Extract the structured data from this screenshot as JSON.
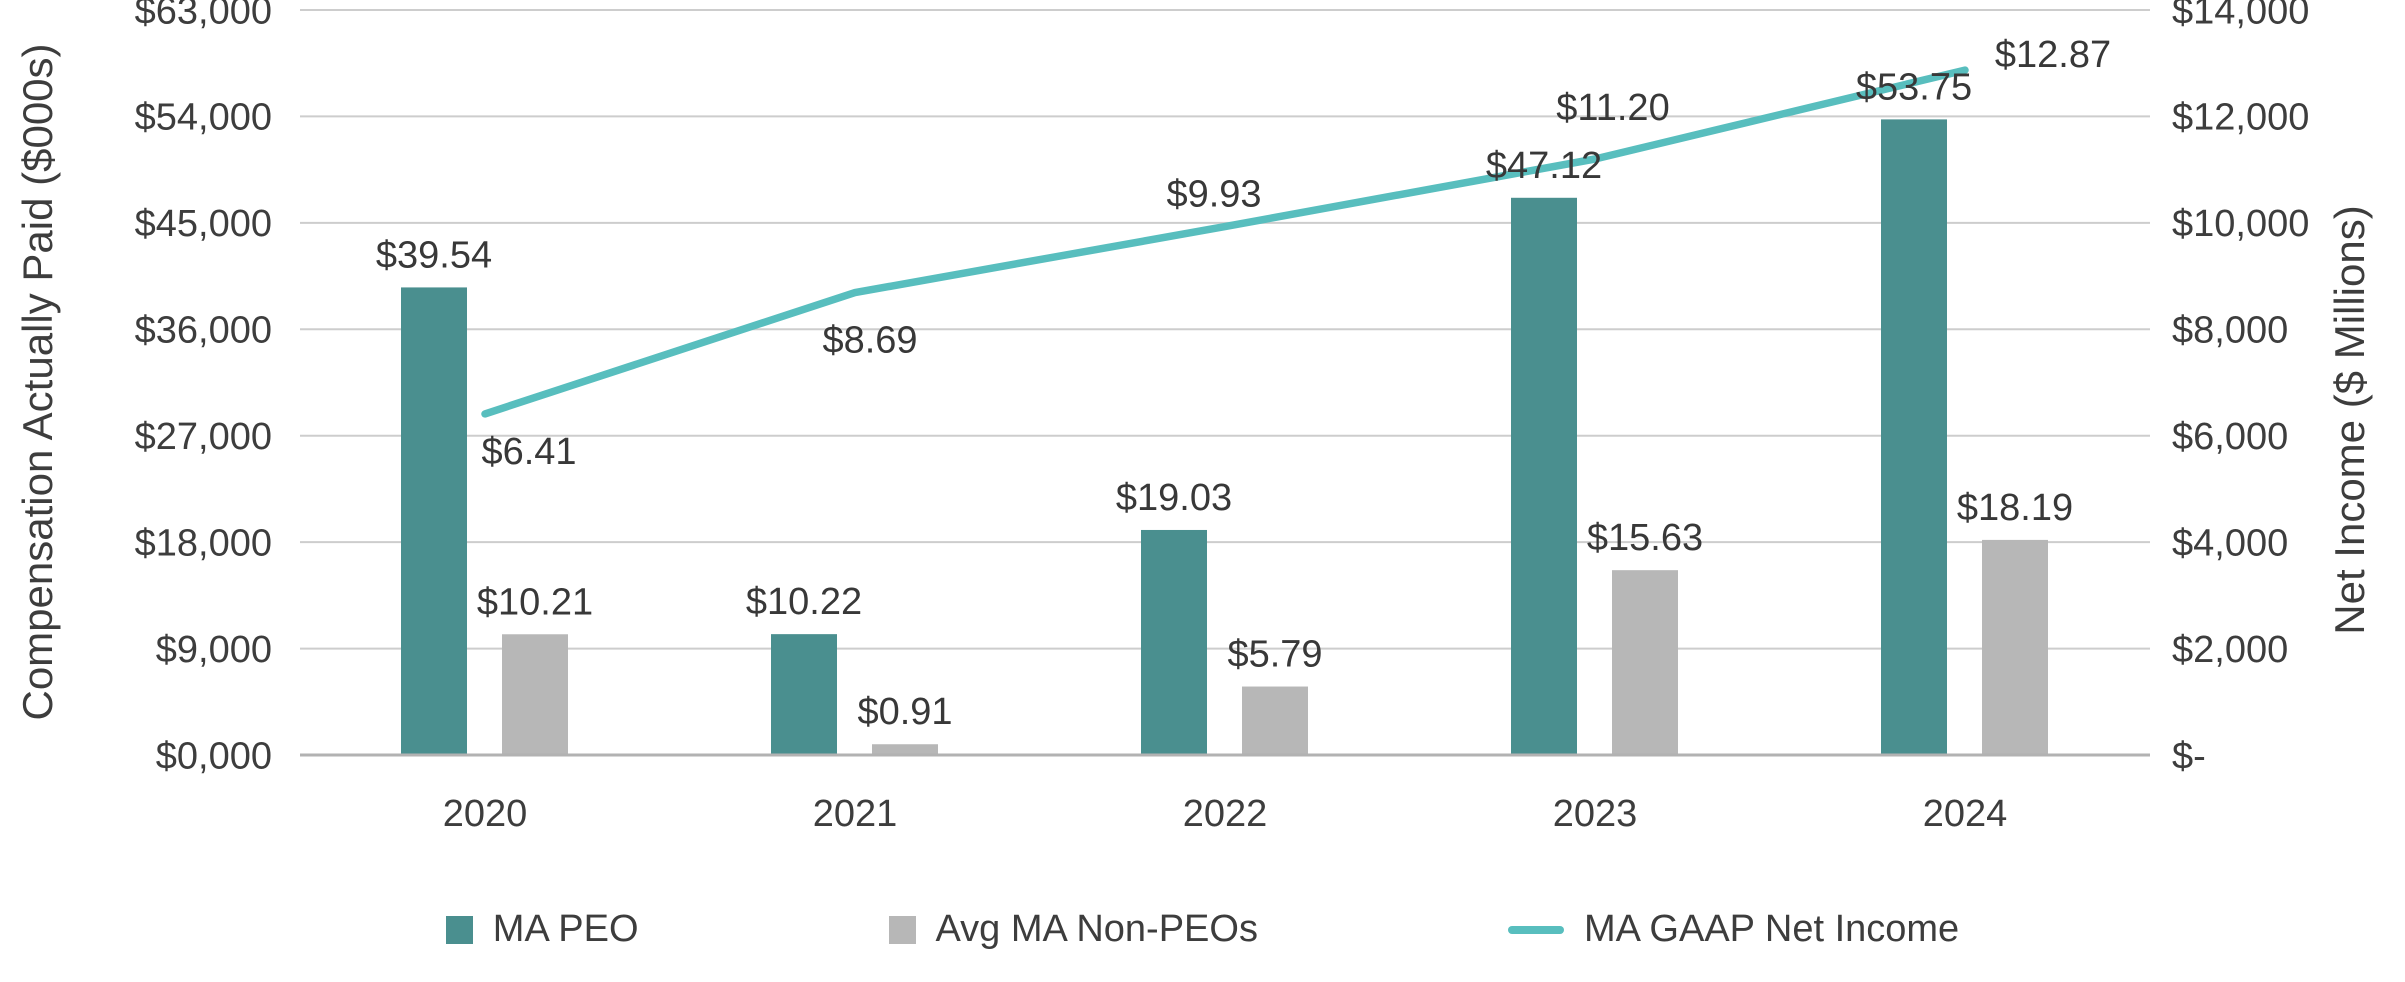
{
  "chart_data": {
    "type": "combo",
    "categories": [
      "2020",
      "2021",
      "2022",
      "2023",
      "2024"
    ],
    "left_axis": {
      "title": "Compensation Actually Paid ($000s)",
      "ticks": [
        "$0,000",
        "$9,000",
        "$18,000",
        "$27,000",
        "$36,000",
        "$45,000",
        "$54,000",
        "$63,000"
      ],
      "min": 0,
      "max": 63000,
      "step": 9000
    },
    "right_axis": {
      "title": "Net Income ($ Millions)",
      "ticks": [
        "$-",
        "$2,000",
        "$4,000",
        "$6,000",
        "$8,000",
        "$10,000",
        "$12,000",
        "$14,000"
      ],
      "min": 0,
      "max": 14000,
      "step": 2000
    },
    "series": [
      {
        "name": "MA PEO",
        "type": "bar",
        "axis": "left",
        "color": "#4A8F8F",
        "values": [
          39540,
          10220,
          19030,
          47120,
          53750
        ],
        "labels": [
          "$39.54",
          "$10.22",
          "$19.03",
          "$47.12",
          "$53.75"
        ]
      },
      {
        "name": "Avg MA Non-PEOs",
        "type": "bar",
        "axis": "left",
        "color": "#B7B7B7",
        "values": [
          10210,
          910,
          5790,
          15630,
          18190
        ],
        "labels": [
          "$10.21",
          "$0.91",
          "$5.79",
          "$15.63",
          "$18.19"
        ]
      },
      {
        "name": "MA GAAP Net Income",
        "type": "line",
        "axis": "right",
        "color": "#58BEBE",
        "values": [
          6410,
          8690,
          9930,
          11200,
          12870
        ],
        "labels": [
          "$6.41",
          "$8.69",
          "$9.93",
          "$11.20",
          "$12.87"
        ],
        "label_offsets": [
          [
            44,
            50
          ],
          [
            15,
            60
          ],
          [
            -11,
            -20
          ],
          [
            18,
            -39
          ],
          [
            88,
            -3
          ]
        ]
      }
    ],
    "legend": {
      "position": "bottom",
      "entries": [
        "MA PEO",
        "Avg MA Non-PEOs",
        "MA GAAP Net Income"
      ]
    },
    "grid": "horizontal",
    "colors": {
      "grid": "#CDCDCD",
      "axis_line": "#B2B2B2",
      "text": "#3D3D3D"
    }
  }
}
